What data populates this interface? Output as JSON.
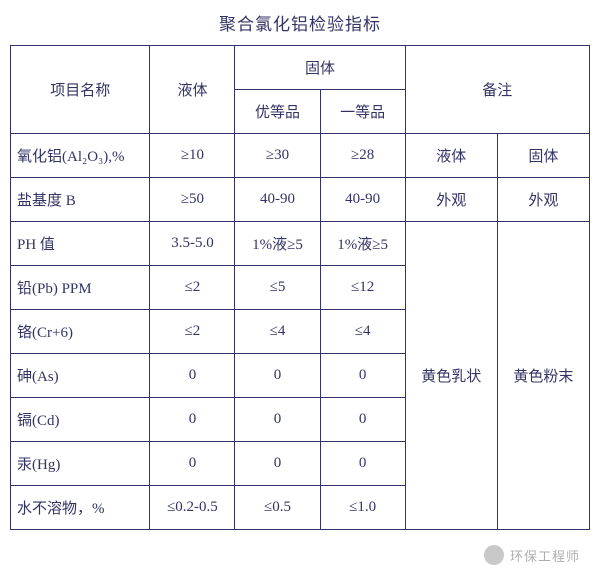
{
  "title": "聚合氯化铝检验指标",
  "headers": {
    "item": "项目名称",
    "liquid": "液体",
    "solid": "固体",
    "superior": "优等品",
    "first": "一等品",
    "note": "备注"
  },
  "rows": [
    {
      "item": "氧化铝(Al₂O₃),%",
      "liquid": "≥10",
      "sup": "≥30",
      "first": "≥28",
      "note1": "液体",
      "note2": "固体"
    },
    {
      "item": "盐基度 B",
      "liquid": "≥50",
      "sup": "40-90",
      "first": "40-90",
      "note1": "外观",
      "note2": "外观"
    },
    {
      "item": "PH 值",
      "liquid": "3.5-5.0",
      "sup": "1%液≥5",
      "first": "1%液≥5"
    },
    {
      "item": "铅(Pb)  PPM",
      "liquid": "≤2",
      "sup": "≤5",
      "first": "≤12"
    },
    {
      "item": "铬(Cr+6)",
      "liquid": "≤2",
      "sup": "≤4",
      "first": "≤4"
    },
    {
      "item": "砷(As)",
      "liquid": "0",
      "sup": "0",
      "first": "0"
    },
    {
      "item": "镉(Cd)",
      "liquid": "0",
      "sup": "0",
      "first": "0"
    },
    {
      "item": "汞(Hg)",
      "liquid": "0",
      "sup": "0",
      "first": "0"
    },
    {
      "item": "水不溶物，%",
      "liquid": "≤0.2-0.5",
      "sup": "≤0.5",
      "first": "≤1.0"
    }
  ],
  "mergenote": {
    "note1": "黄色乳状",
    "note2": "黄色粉末"
  },
  "watermark": "环保工程师"
}
